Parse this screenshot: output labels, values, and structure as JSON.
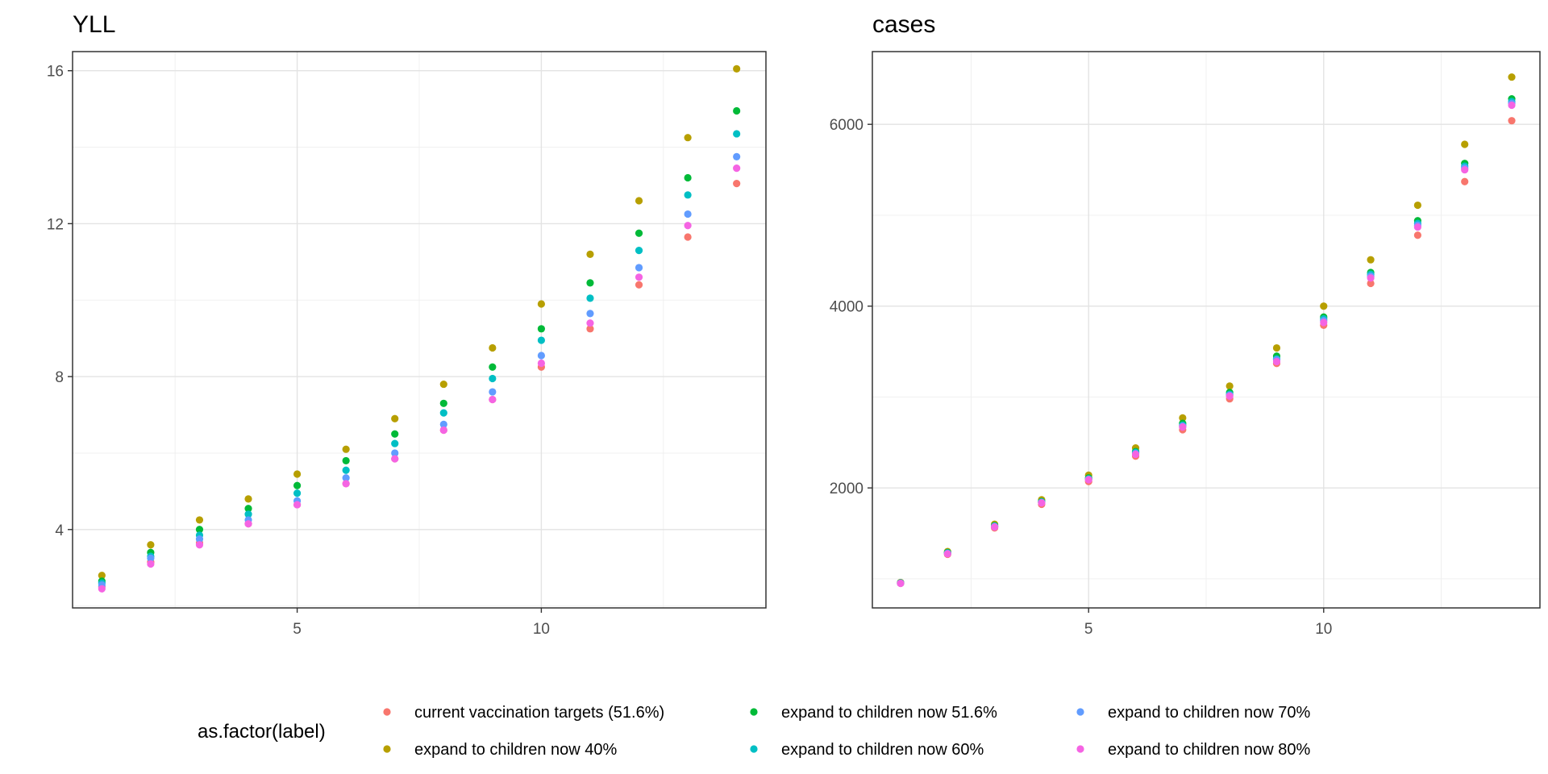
{
  "legend": {
    "title": "as.factor(label)",
    "items": [
      {
        "label": "current vaccination targets (51.6%)",
        "color": "#F8766D"
      },
      {
        "label": "expand to children now 40%",
        "color": "#B79F00"
      },
      {
        "label": "expand to children now 51.6%",
        "color": "#00BA38"
      },
      {
        "label": "expand to children now 60%",
        "color": "#00BFC4"
      },
      {
        "label": "expand to children now 70%",
        "color": "#619CFF"
      },
      {
        "label": "expand to children now 80%",
        "color": "#F564E3"
      }
    ]
  },
  "chart_data": [
    {
      "type": "scatter",
      "title": "YLL",
      "xlabel": "",
      "ylabel": "",
      "xlim": [
        0.4,
        14.6
      ],
      "ylim": [
        1.95,
        16.5
      ],
      "x_ticks": [
        5,
        10
      ],
      "y_ticks": [
        4,
        8,
        12,
        16
      ],
      "grid": true,
      "x": [
        1,
        2,
        3,
        4,
        5,
        6,
        7,
        8,
        9,
        10,
        11,
        12,
        13,
        14
      ],
      "series": [
        {
          "name": "current vaccination targets (51.6%)",
          "color": "#F8766D",
          "values": [
            2.5,
            3.15,
            3.65,
            4.15,
            4.65,
            5.2,
            5.85,
            6.6,
            7.4,
            8.25,
            9.25,
            10.4,
            11.65,
            13.05
          ]
        },
        {
          "name": "expand to children now 40%",
          "color": "#B79F00",
          "values": [
            2.8,
            3.6,
            4.25,
            4.8,
            5.45,
            6.1,
            6.9,
            7.8,
            8.75,
            9.9,
            11.2,
            12.6,
            14.25,
            16.05
          ]
        },
        {
          "name": "expand to children now 51.6%",
          "color": "#00BA38",
          "values": [
            2.65,
            3.4,
            4.0,
            4.55,
            5.15,
            5.8,
            6.5,
            7.3,
            8.25,
            9.25,
            10.45,
            11.75,
            13.2,
            14.95
          ]
        },
        {
          "name": "expand to children now 60%",
          "color": "#00BFC4",
          "values": [
            2.6,
            3.3,
            3.85,
            4.4,
            4.95,
            5.55,
            6.25,
            7.05,
            7.95,
            8.95,
            10.05,
            11.3,
            12.75,
            14.35
          ]
        },
        {
          "name": "expand to children now 70%",
          "color": "#619CFF",
          "values": [
            2.55,
            3.25,
            3.75,
            4.25,
            4.75,
            5.35,
            6.0,
            6.75,
            7.6,
            8.55,
            9.65,
            10.85,
            12.25,
            13.75
          ]
        },
        {
          "name": "expand to children now 80%",
          "color": "#F564E3",
          "values": [
            2.45,
            3.1,
            3.6,
            4.15,
            4.65,
            5.2,
            5.85,
            6.6,
            7.4,
            8.35,
            9.4,
            10.6,
            11.95,
            13.45
          ]
        }
      ]
    },
    {
      "type": "scatter",
      "title": "cases",
      "xlabel": "",
      "ylabel": "",
      "xlim": [
        0.4,
        14.6
      ],
      "ylim": [
        680,
        6800
      ],
      "x_ticks": [
        5,
        10
      ],
      "y_ticks": [
        2000,
        4000,
        6000
      ],
      "grid": true,
      "x": [
        1,
        2,
        3,
        4,
        5,
        6,
        7,
        8,
        9,
        10,
        11,
        12,
        13,
        14
      ],
      "series": [
        {
          "name": "current vaccination targets (51.6%)",
          "color": "#F8766D",
          "values": [
            950,
            1270,
            1560,
            1820,
            2070,
            2350,
            2640,
            2980,
            3370,
            3790,
            4250,
            4780,
            5370,
            6040
          ]
        },
        {
          "name": "expand to children now 40%",
          "color": "#B79F00",
          "values": [
            960,
            1300,
            1600,
            1870,
            2140,
            2440,
            2770,
            3120,
            3540,
            4000,
            4510,
            5110,
            5780,
            6520
          ]
        },
        {
          "name": "expand to children now 51.6%",
          "color": "#00BA38",
          "values": [
            955,
            1290,
            1585,
            1850,
            2110,
            2400,
            2710,
            3050,
            3450,
            3880,
            4370,
            4940,
            5570,
            6280
          ]
        },
        {
          "name": "expand to children now 60%",
          "color": "#00BFC4",
          "values": [
            955,
            1285,
            1580,
            1845,
            2100,
            2390,
            2690,
            3030,
            3420,
            3860,
            4350,
            4910,
            5540,
            6250
          ]
        },
        {
          "name": "expand to children now 70%",
          "color": "#619CFF",
          "values": [
            952,
            1280,
            1575,
            1840,
            2095,
            2380,
            2680,
            3020,
            3410,
            3840,
            4330,
            4890,
            5520,
            6230
          ]
        },
        {
          "name": "expand to children now 80%",
          "color": "#F564E3",
          "values": [
            950,
            1275,
            1570,
            1835,
            2090,
            2370,
            2670,
            3010,
            3390,
            3820,
            4310,
            4870,
            5500,
            6210
          ]
        }
      ]
    }
  ]
}
